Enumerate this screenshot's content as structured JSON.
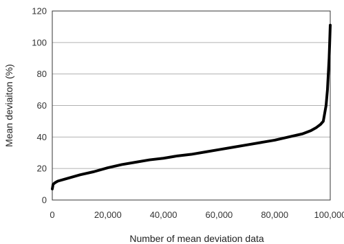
{
  "chart_data": {
    "type": "line",
    "xlabel": "Number of mean deviation data",
    "ylabel": "Mean deviaiton (%)",
    "xlim": [
      0,
      100000
    ],
    "ylim": [
      0,
      120
    ],
    "x_ticks": [
      0,
      20000,
      40000,
      60000,
      80000,
      100000
    ],
    "x_tick_labels": [
      "0",
      "20,000",
      "40,000",
      "60,000",
      "80,000",
      "100,000"
    ],
    "y_ticks": [
      0,
      20,
      40,
      60,
      80,
      100,
      120
    ],
    "y_tick_labels": [
      "0",
      "20",
      "40",
      "60",
      "80",
      "100",
      "120"
    ],
    "grid": "horizontal",
    "legend": "none",
    "series_color": "#000000",
    "series": [
      {
        "x": [
          0,
          300,
          1000,
          2000,
          5000,
          10000,
          15000,
          20000,
          25000,
          30000,
          35000,
          40000,
          45000,
          50000,
          55000,
          60000,
          65000,
          70000,
          75000,
          80000,
          85000,
          90000,
          93000,
          95000,
          96500,
          97500,
          98000,
          98500,
          99000,
          99300,
          99600,
          99800,
          100000
        ],
        "y": [
          7,
          10,
          11,
          12,
          13.5,
          16,
          18,
          20.5,
          22.5,
          24,
          25.5,
          26.5,
          28,
          29,
          30.5,
          32,
          33.5,
          35,
          36.5,
          38,
          40,
          42,
          44,
          46,
          48,
          50,
          55,
          60,
          70,
          80,
          90,
          100,
          111
        ]
      }
    ]
  }
}
